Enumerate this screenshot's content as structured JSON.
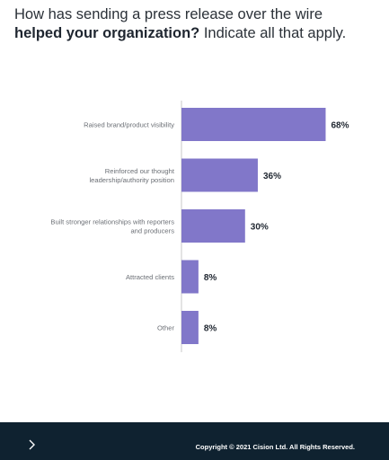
{
  "question": {
    "line1": "How has sending a press release over the wire",
    "line2_bold": "helped your organization?",
    "line2_rest": " Indicate all that apply."
  },
  "chart_data": {
    "type": "bar",
    "orientation": "horizontal",
    "categories": [
      "Raised brand/product visibility",
      "Reinforced our thought leadership/authority position",
      "Built stronger relationships with reporters and producers",
      "Attracted clients",
      "Other"
    ],
    "category_lines": [
      [
        "Raised brand/product visibility"
      ],
      [
        "Reinforced our thought",
        "leadership/authority position"
      ],
      [
        "Built stronger relationships with reporters",
        "and producers"
      ],
      [
        "Attracted clients"
      ],
      [
        "Other"
      ]
    ],
    "values": [
      68,
      36,
      30,
      8,
      8
    ],
    "value_labels": [
      "68%",
      "36%",
      "30%",
      "8%",
      "8%"
    ],
    "unit": "%",
    "xlim": [
      0,
      100
    ],
    "grid": false,
    "bar_color": "#8177c9"
  },
  "footer": {
    "copyright": "Copyright © 2021 Cision Ltd. All Rights Reserved.",
    "chevron_icon": "chevron-right-icon"
  }
}
